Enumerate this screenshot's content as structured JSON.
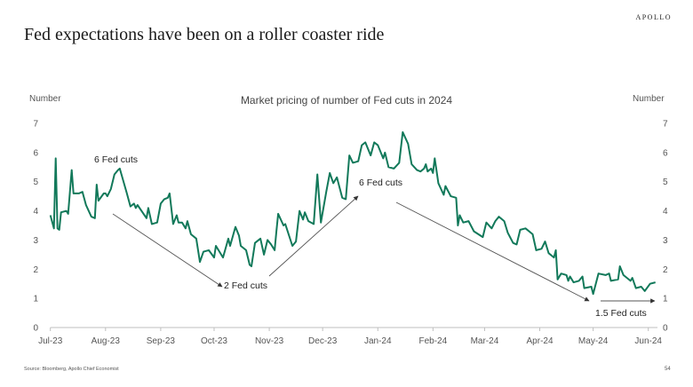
{
  "header": {
    "title": "Fed expectations have been on a roller coaster ride",
    "logo": "APOLLO"
  },
  "footer": {
    "source": "Source: Bloomberg, Apollo Chief Economist",
    "page": "54"
  },
  "colors": {
    "line": "#12795a",
    "axis": "#bfbfbf",
    "arrow": "#444444"
  },
  "chart_data": {
    "type": "line",
    "title": "Market pricing of number of Fed cuts in 2024",
    "ylabel_left": "Number",
    "ylabel_right": "Number",
    "ylim": [
      0,
      7
    ],
    "yticks": [
      "0",
      "1",
      "2",
      "3",
      "4",
      "5",
      "6",
      "7"
    ],
    "xticks": [
      {
        "date": "2023-07-01",
        "label": "Jul-23"
      },
      {
        "date": "2023-08-01",
        "label": "Aug-23"
      },
      {
        "date": "2023-09-01",
        "label": "Sep-23"
      },
      {
        "date": "2023-10-01",
        "label": "Oct-23"
      },
      {
        "date": "2023-11-01",
        "label": "Nov-23"
      },
      {
        "date": "2023-12-01",
        "label": "Dec-23"
      },
      {
        "date": "2024-01-01",
        "label": "Jan-24"
      },
      {
        "date": "2024-02-01",
        "label": "Feb-24"
      },
      {
        "date": "2024-03-01",
        "label": "Mar-24"
      },
      {
        "date": "2024-04-01",
        "label": "Apr-24"
      },
      {
        "date": "2024-05-01",
        "label": "May-24"
      },
      {
        "date": "2024-06-01",
        "label": "Jun-24"
      }
    ],
    "grid": false,
    "legend": "none",
    "annotations": [
      "6 Fed cuts",
      "2 Fed cuts",
      "6 Fed cuts",
      "1.5 Fed cuts"
    ],
    "series": [
      {
        "points": [
          [
            "2023-07-01",
            3.85
          ],
          [
            "2023-07-03",
            3.4
          ],
          [
            "2023-07-04",
            5.8
          ],
          [
            "2023-07-05",
            3.4
          ],
          [
            "2023-07-06",
            3.35
          ],
          [
            "2023-07-07",
            3.95
          ],
          [
            "2023-07-10",
            4.0
          ],
          [
            "2023-07-11",
            3.9
          ],
          [
            "2023-07-13",
            5.4
          ],
          [
            "2023-07-14",
            4.6
          ],
          [
            "2023-07-17",
            4.6
          ],
          [
            "2023-07-19",
            4.65
          ],
          [
            "2023-07-21",
            4.2
          ],
          [
            "2023-07-24",
            3.8
          ],
          [
            "2023-07-26",
            3.75
          ],
          [
            "2023-07-27",
            4.9
          ],
          [
            "2023-07-28",
            4.35
          ],
          [
            "2023-07-31",
            4.6
          ],
          [
            "2023-08-01",
            4.6
          ],
          [
            "2023-08-02",
            4.5
          ],
          [
            "2023-08-04",
            4.75
          ],
          [
            "2023-08-06",
            5.25
          ],
          [
            "2023-08-08",
            5.4
          ],
          [
            "2023-08-09",
            5.45
          ],
          [
            "2023-08-13",
            4.6
          ],
          [
            "2023-08-15",
            4.15
          ],
          [
            "2023-08-17",
            4.25
          ],
          [
            "2023-08-18",
            4.1
          ],
          [
            "2023-08-19",
            4.2
          ],
          [
            "2023-08-24",
            3.75
          ],
          [
            "2023-08-25",
            4.1
          ],
          [
            "2023-08-27",
            3.55
          ],
          [
            "2023-08-30",
            3.6
          ],
          [
            "2023-09-01",
            4.25
          ],
          [
            "2023-09-03",
            4.4
          ],
          [
            "2023-09-05",
            4.45
          ],
          [
            "2023-09-06",
            4.6
          ],
          [
            "2023-09-08",
            3.55
          ],
          [
            "2023-09-10",
            3.85
          ],
          [
            "2023-09-11",
            3.6
          ],
          [
            "2023-09-13",
            3.6
          ],
          [
            "2023-09-15",
            3.4
          ],
          [
            "2023-09-16",
            3.65
          ],
          [
            "2023-09-18",
            3.2
          ],
          [
            "2023-09-21",
            3.05
          ],
          [
            "2023-09-23",
            2.25
          ],
          [
            "2023-09-25",
            2.6
          ],
          [
            "2023-09-28",
            2.65
          ],
          [
            "2023-10-01",
            2.4
          ],
          [
            "2023-10-02",
            2.8
          ],
          [
            "2023-10-06",
            2.4
          ],
          [
            "2023-10-09",
            3.05
          ],
          [
            "2023-10-10",
            2.8
          ],
          [
            "2023-10-13",
            3.45
          ],
          [
            "2023-10-15",
            3.15
          ],
          [
            "2023-10-16",
            2.8
          ],
          [
            "2023-10-19",
            2.65
          ],
          [
            "2023-10-21",
            2.15
          ],
          [
            "2023-10-22",
            2.1
          ],
          [
            "2023-10-24",
            2.9
          ],
          [
            "2023-10-27",
            3.05
          ],
          [
            "2023-10-29",
            2.5
          ],
          [
            "2023-10-31",
            3.0
          ],
          [
            "2023-11-02",
            2.85
          ],
          [
            "2023-11-04",
            2.65
          ],
          [
            "2023-11-05",
            3.3
          ],
          [
            "2023-11-06",
            3.9
          ],
          [
            "2023-11-09",
            3.5
          ],
          [
            "2023-11-10",
            3.55
          ],
          [
            "2023-11-14",
            2.8
          ],
          [
            "2023-11-16",
            2.95
          ],
          [
            "2023-11-18",
            4.0
          ],
          [
            "2023-11-20",
            3.7
          ],
          [
            "2023-11-21",
            3.95
          ],
          [
            "2023-11-23",
            3.65
          ],
          [
            "2023-11-26",
            3.55
          ],
          [
            "2023-11-28",
            5.25
          ],
          [
            "2023-11-30",
            3.6
          ],
          [
            "2023-12-03",
            4.65
          ],
          [
            "2023-12-05",
            5.3
          ],
          [
            "2023-12-07",
            4.95
          ],
          [
            "2023-12-09",
            5.15
          ],
          [
            "2023-12-12",
            4.45
          ],
          [
            "2023-12-14",
            4.4
          ],
          [
            "2023-12-16",
            5.9
          ],
          [
            "2023-12-18",
            5.65
          ],
          [
            "2023-12-21",
            5.7
          ],
          [
            "2023-12-23",
            6.25
          ],
          [
            "2023-12-25",
            6.35
          ],
          [
            "2023-12-28",
            5.9
          ],
          [
            "2023-12-30",
            6.35
          ],
          [
            "2024-01-01",
            6.25
          ],
          [
            "2024-01-04",
            5.8
          ],
          [
            "2024-01-05",
            6.0
          ],
          [
            "2024-01-07",
            5.5
          ],
          [
            "2024-01-10",
            5.45
          ],
          [
            "2024-01-13",
            5.65
          ],
          [
            "2024-01-15",
            6.7
          ],
          [
            "2024-01-18",
            6.3
          ],
          [
            "2024-01-20",
            5.6
          ],
          [
            "2024-01-23",
            5.4
          ],
          [
            "2024-01-25",
            5.35
          ],
          [
            "2024-01-27",
            5.45
          ],
          [
            "2024-01-28",
            5.6
          ],
          [
            "2024-01-29",
            5.35
          ],
          [
            "2024-01-31",
            5.45
          ],
          [
            "2024-02-01",
            5.3
          ],
          [
            "2024-02-02",
            5.8
          ],
          [
            "2024-02-04",
            4.95
          ],
          [
            "2024-02-07",
            4.55
          ],
          [
            "2024-02-08",
            4.85
          ],
          [
            "2024-02-11",
            4.5
          ],
          [
            "2024-02-14",
            4.45
          ],
          [
            "2024-02-15",
            3.5
          ],
          [
            "2024-02-16",
            3.85
          ],
          [
            "2024-02-18",
            3.6
          ],
          [
            "2024-02-21",
            3.65
          ],
          [
            "2024-02-24",
            3.3
          ],
          [
            "2024-02-29",
            3.1
          ],
          [
            "2024-03-02",
            3.6
          ],
          [
            "2024-03-05",
            3.4
          ],
          [
            "2024-03-07",
            3.65
          ],
          [
            "2024-03-09",
            3.8
          ],
          [
            "2024-03-12",
            3.65
          ],
          [
            "2024-03-14",
            3.25
          ],
          [
            "2024-03-17",
            2.9
          ],
          [
            "2024-03-19",
            2.85
          ],
          [
            "2024-03-21",
            3.35
          ],
          [
            "2024-03-24",
            3.4
          ],
          [
            "2024-03-28",
            3.2
          ],
          [
            "2024-03-30",
            2.65
          ],
          [
            "2024-04-02",
            2.7
          ],
          [
            "2024-04-04",
            2.95
          ],
          [
            "2024-04-06",
            2.55
          ],
          [
            "2024-04-09",
            2.4
          ],
          [
            "2024-04-10",
            2.65
          ],
          [
            "2024-04-11",
            1.65
          ],
          [
            "2024-04-13",
            1.85
          ],
          [
            "2024-04-16",
            1.8
          ],
          [
            "2024-04-17",
            1.6
          ],
          [
            "2024-04-18",
            1.75
          ],
          [
            "2024-04-20",
            1.55
          ],
          [
            "2024-04-23",
            1.6
          ],
          [
            "2024-04-25",
            1.75
          ],
          [
            "2024-04-26",
            1.35
          ],
          [
            "2024-04-30",
            1.4
          ],
          [
            "2024-05-01",
            1.15
          ],
          [
            "2024-05-04",
            1.85
          ],
          [
            "2024-05-08",
            1.8
          ],
          [
            "2024-05-10",
            1.85
          ],
          [
            "2024-05-11",
            1.6
          ],
          [
            "2024-05-15",
            1.65
          ],
          [
            "2024-05-16",
            2.1
          ],
          [
            "2024-05-18",
            1.8
          ],
          [
            "2024-05-22",
            1.6
          ],
          [
            "2024-05-23",
            1.7
          ],
          [
            "2024-05-25",
            1.35
          ],
          [
            "2024-05-28",
            1.4
          ],
          [
            "2024-05-30",
            1.25
          ],
          [
            "2024-06-02",
            1.5
          ],
          [
            "2024-06-05",
            1.55
          ]
        ]
      }
    ]
  }
}
